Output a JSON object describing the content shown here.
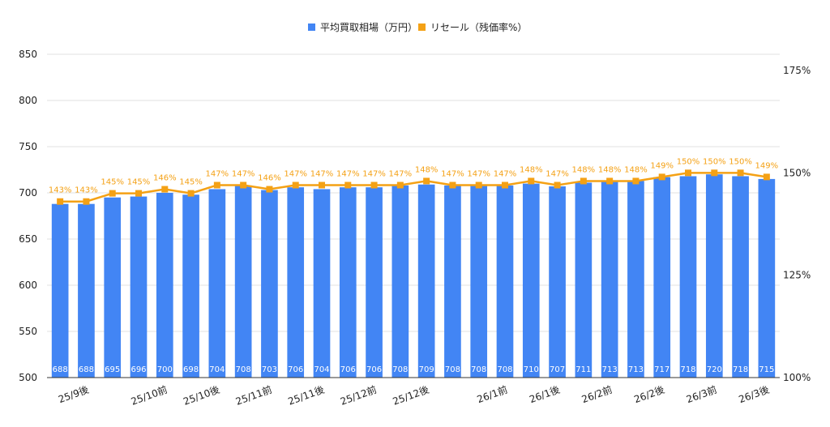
{
  "chart_data": {
    "type": "bar",
    "series": [
      {
        "name": "平均買取相場（万円）",
        "type": "bar",
        "axis": "left",
        "values": [
          688,
          688,
          695,
          696,
          700,
          698,
          704,
          708,
          703,
          706,
          704,
          706,
          706,
          708,
          709,
          708,
          708,
          708,
          710,
          707,
          711,
          713,
          713,
          717,
          718,
          720,
          718,
          715
        ]
      },
      {
        "name": "リセール（残価率%）",
        "type": "line",
        "axis": "right",
        "values": [
          143,
          143,
          145,
          145,
          146,
          145,
          147,
          147,
          146,
          147,
          147,
          147,
          147,
          147,
          148,
          147,
          147,
          147,
          148,
          147,
          148,
          148,
          148,
          149,
          150,
          150,
          150,
          149
        ],
        "labels": [
          "143%",
          "143%",
          "145%",
          "145%",
          "146%",
          "145%",
          "147%",
          "147%",
          "146%",
          "147%",
          "147%",
          "147%",
          "147%",
          "147%",
          "148%",
          "147%",
          "147%",
          "147%",
          "148%",
          "147%",
          "148%",
          "148%",
          "148%",
          "149%",
          "150%",
          "150%",
          "150%",
          "149%"
        ]
      }
    ],
    "x_tick_labels": [
      {
        "index": 1,
        "label": "25/9後"
      },
      {
        "index": 4,
        "label": "25/10前"
      },
      {
        "index": 6,
        "label": "25/10後"
      },
      {
        "index": 8,
        "label": "25/11前"
      },
      {
        "index": 10,
        "label": "25/11後"
      },
      {
        "index": 12,
        "label": "25/12前"
      },
      {
        "index": 14,
        "label": "25/12後"
      },
      {
        "index": 17,
        "label": "26/1前"
      },
      {
        "index": 19,
        "label": "26/1後"
      },
      {
        "index": 21,
        "label": "26/2前"
      },
      {
        "index": 23,
        "label": "26/2後"
      },
      {
        "index": 25,
        "label": "26/3前"
      },
      {
        "index": 27,
        "label": "26/3後"
      }
    ],
    "y_left": {
      "min": 500,
      "max": 850,
      "ticks": [
        500,
        550,
        600,
        650,
        700,
        750,
        800,
        850
      ]
    },
    "y_right": {
      "min": 100,
      "max": 175,
      "ticks": [
        "100%",
        "125%",
        "150%",
        "175%"
      ],
      "tick_values": [
        100,
        125,
        150,
        175
      ]
    },
    "legend_position": "top",
    "grid": true,
    "colors": {
      "bar": "#4285f4",
      "line": "#f4a115",
      "grid": "#e0e0e0",
      "axis": "#333333"
    }
  }
}
